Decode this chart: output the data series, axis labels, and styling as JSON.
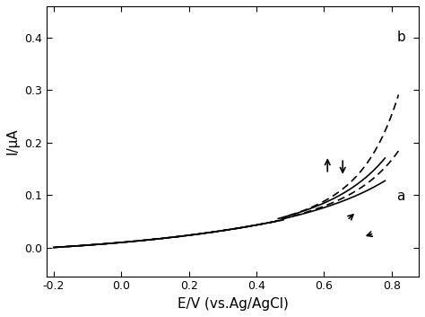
{
  "xlim": [
    -0.22,
    0.88
  ],
  "ylim": [
    -0.055,
    0.46
  ],
  "xticks": [
    -0.2,
    0.0,
    0.2,
    0.4,
    0.6,
    0.8
  ],
  "yticks": [
    0.0,
    0.1,
    0.2,
    0.3,
    0.4
  ],
  "xlabel": "E/V (vs.Ag/AgCl)",
  "ylabel": "I/μA",
  "label_a": "a",
  "label_b": "b",
  "color_solid": "#000000",
  "color_dashed": "#000000",
  "background": "#ffffff",
  "figsize": [
    4.74,
    3.53
  ],
  "dpi": 100
}
